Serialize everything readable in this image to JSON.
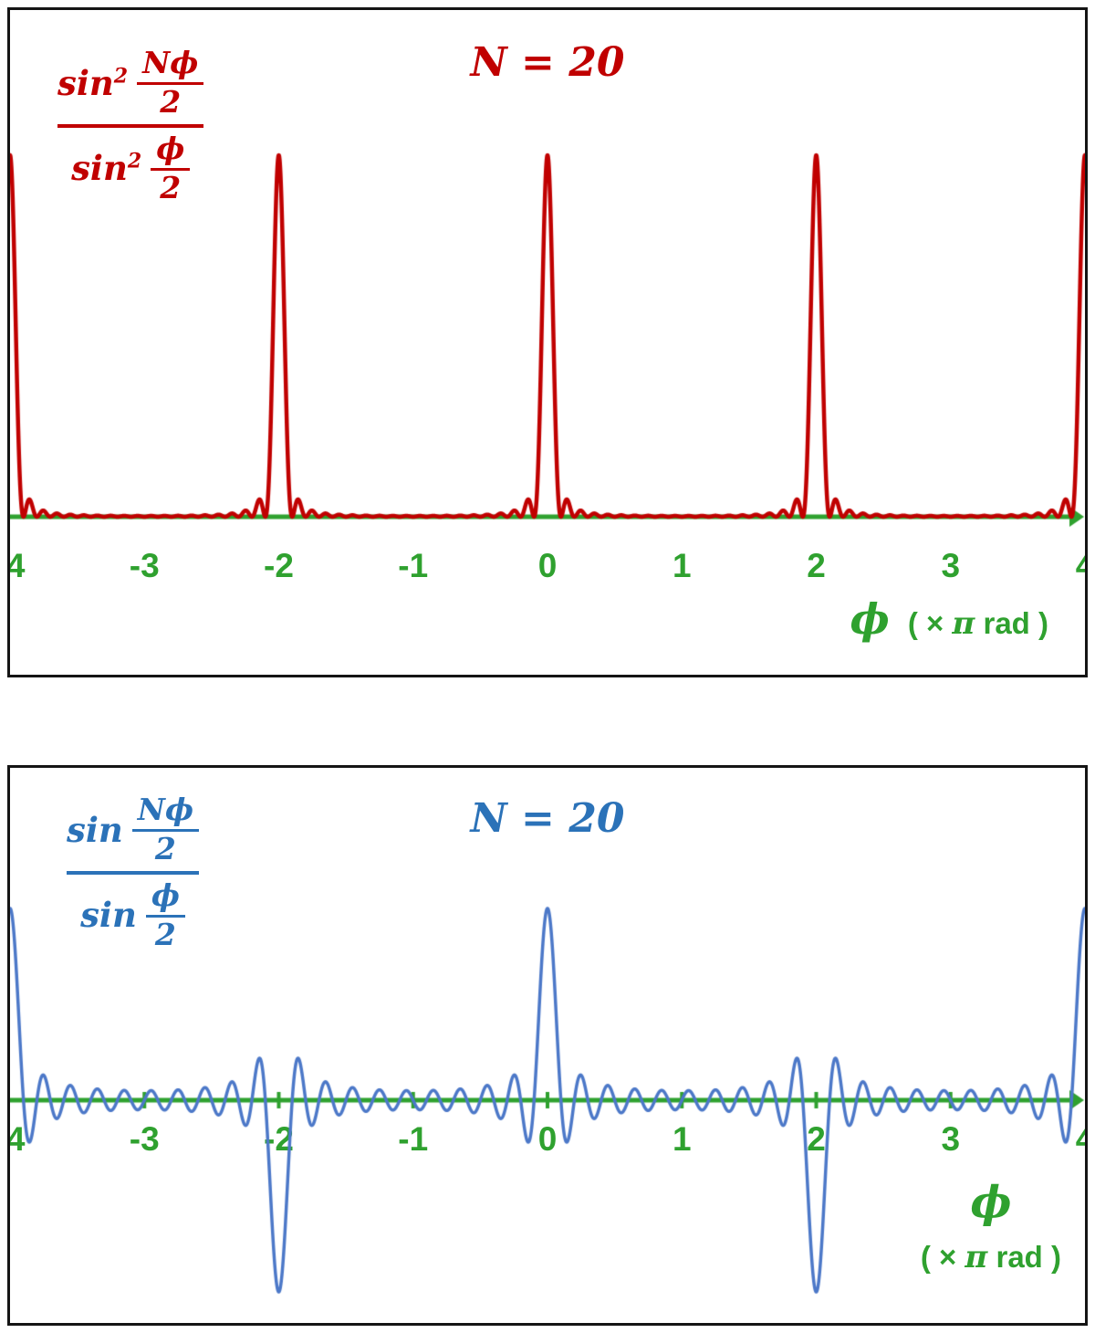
{
  "colors": {
    "red": "#C00000",
    "blue_text": "#2B72B8",
    "blue_curve": "#4C78C8",
    "green": "#2FA12F",
    "border": "#141414"
  },
  "panels": [
    {
      "n_label": "N = 20",
      "formula": {
        "fn": "sin",
        "exp": "2",
        "num_top": "Nϕ",
        "num_bot": "2",
        "den_top": "ϕ",
        "den_bot": "2"
      },
      "axis": {
        "phi": "ϕ",
        "unit_pre": "( × ",
        "unit_pi": "π",
        "unit_post": " rad )"
      },
      "ticks": [
        "-4",
        "-3",
        "-2",
        "-1",
        "0",
        "1",
        "2",
        "3",
        "4"
      ]
    },
    {
      "n_label": "N = 20",
      "formula": {
        "fn": "sin",
        "exp": "",
        "num_top": "Nϕ",
        "num_bot": "2",
        "den_top": "ϕ",
        "den_bot": "2"
      },
      "axis": {
        "phi": "ϕ",
        "unit_pre": "( × ",
        "unit_pi": "π",
        "unit_post": " rad )"
      },
      "ticks": [
        "-4",
        "-3",
        "-2",
        "-1",
        "0",
        "1",
        "2",
        "3",
        "4"
      ]
    }
  ],
  "chart_data": [
    {
      "type": "line",
      "title": "N = 20",
      "series": [
        {
          "name": "sin²(Nϕ/2) / sin²(ϕ/2)",
          "function": "(sin(N*phi/2)/sin(phi/2))^2"
        }
      ],
      "N": 20,
      "x_range": [
        -4,
        4
      ],
      "x_unit": "π rad",
      "xlabel": "ϕ ( × π rad )",
      "y_range": [
        0,
        400
      ],
      "x_ticks": [
        -4,
        -3,
        -2,
        -1,
        0,
        1,
        2,
        3,
        4
      ],
      "principal_maxima": {
        "x": [
          -4,
          -2,
          0,
          2,
          4
        ],
        "value": 400
      },
      "grid": false,
      "color": "#C00000",
      "axis_color": "#2FA12F",
      "samples": 9000
    },
    {
      "type": "line",
      "title": "N = 20",
      "series": [
        {
          "name": "sin(Nϕ/2) / sin(ϕ/2)",
          "function": "sin(N*phi/2)/sin(phi/2)"
        }
      ],
      "N": 20,
      "x_range": [
        -4,
        4
      ],
      "x_unit": "π rad",
      "xlabel": "ϕ ( × π rad )",
      "y_range": [
        -20,
        20
      ],
      "x_ticks": [
        -4,
        -3,
        -2,
        -1,
        0,
        1,
        2,
        3,
        4
      ],
      "extrema": [
        {
          "x": -4,
          "value": 20
        },
        {
          "x": -2,
          "value": -20
        },
        {
          "x": 0,
          "value": 20
        },
        {
          "x": 2,
          "value": -20
        },
        {
          "x": 4,
          "value": 20
        }
      ],
      "grid": false,
      "color": "#4C78C8",
      "axis_color": "#2FA12F",
      "samples": 9000
    }
  ]
}
